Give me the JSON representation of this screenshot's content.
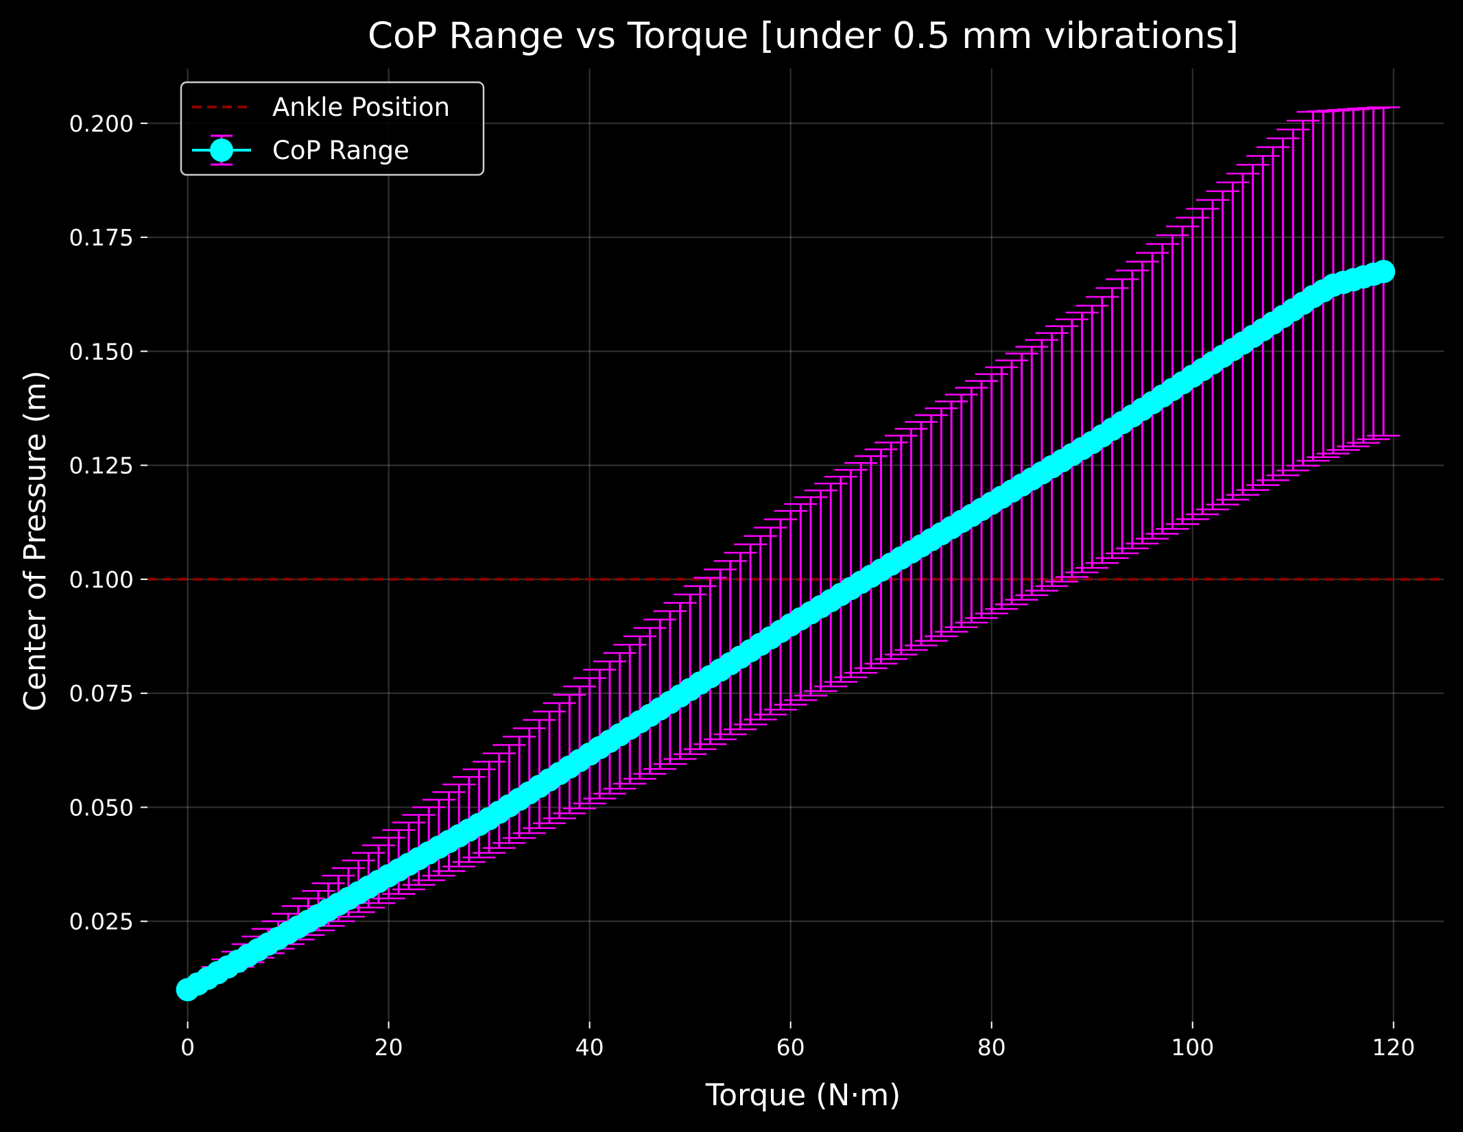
{
  "chart_data": {
    "type": "line",
    "title": "CoP Range vs Torque [under 0.5 mm vibrations]",
    "xlabel": "Torque (N·m)",
    "ylabel": "Center of Pressure (m)",
    "xlim": [
      -4,
      125
    ],
    "ylim": [
      0.003,
      0.212
    ],
    "xticks": [
      0,
      20,
      40,
      60,
      80,
      100,
      120
    ],
    "yticks": [
      0.025,
      0.05,
      0.075,
      0.1,
      0.125,
      0.15,
      0.175,
      0.2
    ],
    "xtick_labels": [
      "0",
      "20",
      "40",
      "60",
      "80",
      "100",
      "120"
    ],
    "ytick_labels": [
      "0.025",
      "0.050",
      "0.075",
      "0.100",
      "0.125",
      "0.150",
      "0.175",
      "0.200"
    ],
    "grid": true,
    "background": "#000000",
    "legend": {
      "position": "top-left",
      "entries": [
        "Ankle Position",
        "CoP Range"
      ]
    },
    "reference_line": {
      "name": "Ankle Position",
      "y": 0.1,
      "style": "dashed",
      "color": "#8b0000"
    },
    "series": [
      {
        "name": "CoP Range",
        "color": "#00ffff",
        "errorbar_color": "#ff00ff",
        "x_start": 0,
        "x_end": 119,
        "x_step": 1,
        "center_anchors": [
          [
            0,
            0.01
          ],
          [
            30,
            0.0475
          ],
          [
            60,
            0.09
          ],
          [
            90,
            0.13
          ],
          [
            112,
            0.162
          ],
          [
            114,
            0.1645
          ],
          [
            119,
            0.1675
          ]
        ],
        "upper_anchors": [
          [
            0,
            0.01
          ],
          [
            30,
            0.06
          ],
          [
            60,
            0.115
          ],
          [
            90,
            0.16
          ],
          [
            112,
            0.2025
          ],
          [
            119,
            0.2035
          ]
        ],
        "lower_anchors": [
          [
            0,
            0.01
          ],
          [
            30,
            0.04
          ],
          [
            60,
            0.0725
          ],
          [
            90,
            0.1025
          ],
          [
            112,
            0.126
          ],
          [
            119,
            0.1315
          ]
        ]
      }
    ]
  }
}
